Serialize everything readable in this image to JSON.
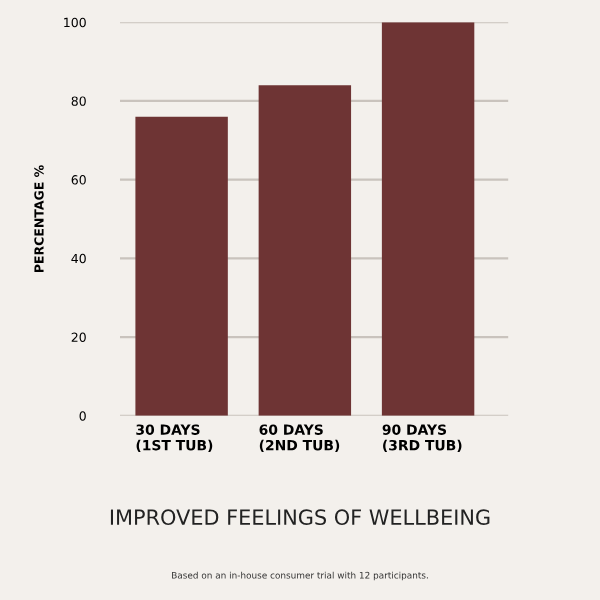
{
  "chart_data": {
    "type": "bar",
    "title": "IMPROVED FEELINGS OF WELLBEING",
    "ylabel": "PERCENTAGE %",
    "categories": [
      "30 DAYS\n(1ST TUB)",
      "60 DAYS\n(2ND TUB)",
      "90 DAYS\n(3RD TUB)"
    ],
    "values": [
      76,
      84,
      100
    ],
    "color": "#6e3434",
    "ylim": [
      0,
      100
    ],
    "yticks": [
      0,
      20,
      40,
      60,
      80,
      100
    ],
    "grid": "y",
    "annotations": [
      "Based on an in-house consumer trial with 12 participants."
    ]
  }
}
